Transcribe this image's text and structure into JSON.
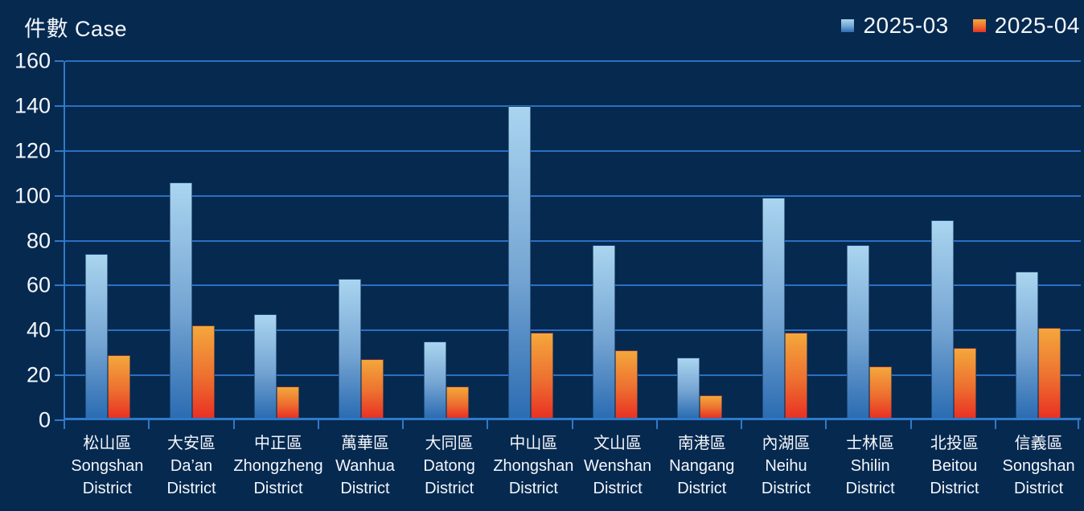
{
  "page": {
    "background": "#062950"
  },
  "chart_data": {
    "type": "bar",
    "title": "",
    "y_axis_title": "件數 Case",
    "xlabel": "",
    "ylabel": "件數 Case",
    "ylim": [
      0,
      160
    ],
    "ytick_step": 20,
    "yticks": [
      0,
      20,
      40,
      60,
      80,
      100,
      120,
      140,
      160
    ],
    "grid": true,
    "legend_position": "top-right",
    "categories": [
      {
        "zh": "松山區",
        "en": "Songshan",
        "line3": "District"
      },
      {
        "zh": "大安區",
        "en": "Da’an",
        "line3": "District"
      },
      {
        "zh": "中正區",
        "en": "Zhongzheng",
        "line3": "District"
      },
      {
        "zh": "萬華區",
        "en": "Wanhua",
        "line3": "District"
      },
      {
        "zh": "大同區",
        "en": "Datong",
        "line3": "District"
      },
      {
        "zh": "中山區",
        "en": "Zhongshan",
        "line3": "District"
      },
      {
        "zh": "文山區",
        "en": "Wenshan",
        "line3": "District"
      },
      {
        "zh": "南港區",
        "en": "Nangang",
        "line3": "District"
      },
      {
        "zh": "內湖區",
        "en": "Neihu",
        "line3": "District"
      },
      {
        "zh": "士林區",
        "en": "Shilin",
        "line3": "District"
      },
      {
        "zh": "北投區",
        "en": "Beitou",
        "line3": "District"
      },
      {
        "zh": "信義區",
        "en": "Songshan",
        "line3": "District"
      }
    ],
    "series": [
      {
        "name": "2025-03",
        "values": [
          73,
          105,
          46,
          62,
          34,
          139,
          77,
          27,
          98,
          77,
          88,
          65
        ]
      },
      {
        "name": "2025-04",
        "values": [
          28,
          41,
          14,
          26,
          14,
          38,
          30,
          10,
          38,
          23,
          31,
          40
        ]
      }
    ]
  },
  "colors": {
    "background": "#062950",
    "grid_line": "#2a70c2",
    "axis_line": "#2f7ac8",
    "text": "#f4f7fa",
    "series": [
      {
        "name": "2025-03",
        "top": "#aad5f0",
        "mid": "#74a4d2",
        "bottom": "#2b6cb2"
      },
      {
        "name": "2025-04",
        "top": "#f4a73c",
        "mid": "#ed7030",
        "bottom": "#e93123"
      }
    ]
  }
}
